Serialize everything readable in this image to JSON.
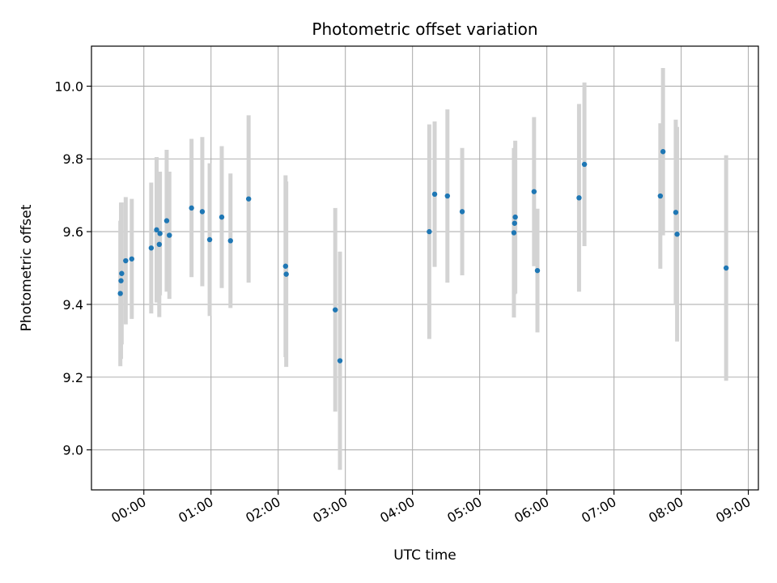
{
  "chart_data": {
    "type": "scatter",
    "title": "Photometric offset variation",
    "xlabel": "UTC time",
    "ylabel": "Photometric offset",
    "x_unit": "hours",
    "xlim": [
      -0.78,
      9.15
    ],
    "ylim": [
      8.89,
      10.11
    ],
    "x_ticks": [
      0,
      1,
      2,
      3,
      4,
      5,
      6,
      7,
      8,
      9
    ],
    "x_tick_labels": [
      "00:00",
      "01:00",
      "02:00",
      "03:00",
      "04:00",
      "05:00",
      "06:00",
      "07:00",
      "08:00",
      "09:00"
    ],
    "y_ticks": [
      9.0,
      9.2,
      9.4,
      9.6,
      9.8,
      10.0
    ],
    "y_tick_labels": [
      "9.0",
      "9.2",
      "9.4",
      "9.6",
      "9.8",
      "10.0"
    ],
    "grid": true,
    "colors": {
      "point": "#1f77b4",
      "errorbar": "#d3d3d3",
      "grid": "#b0b0b0"
    },
    "points": [
      {
        "x": -0.35,
        "y": 9.43,
        "err": 0.2
      },
      {
        "x": -0.34,
        "y": 9.465,
        "err": 0.215
      },
      {
        "x": -0.33,
        "y": 9.485,
        "err": 0.195
      },
      {
        "x": -0.27,
        "y": 9.52,
        "err": 0.175
      },
      {
        "x": -0.18,
        "y": 9.525,
        "err": 0.165
      },
      {
        "x": 0.11,
        "y": 9.555,
        "err": 0.18
      },
      {
        "x": 0.19,
        "y": 9.605,
        "err": 0.2
      },
      {
        "x": 0.23,
        "y": 9.565,
        "err": 0.2
      },
      {
        "x": 0.24,
        "y": 9.595,
        "err": 0.17
      },
      {
        "x": 0.34,
        "y": 9.63,
        "err": 0.195
      },
      {
        "x": 0.38,
        "y": 9.59,
        "err": 0.175
      },
      {
        "x": 0.71,
        "y": 9.665,
        "err": 0.19
      },
      {
        "x": 0.87,
        "y": 9.655,
        "err": 0.205
      },
      {
        "x": 0.98,
        "y": 9.578,
        "err": 0.21
      },
      {
        "x": 1.16,
        "y": 9.64,
        "err": 0.195
      },
      {
        "x": 1.29,
        "y": 9.575,
        "err": 0.185
      },
      {
        "x": 1.56,
        "y": 9.69,
        "err": 0.23
      },
      {
        "x": 2.11,
        "y": 9.505,
        "err": 0.25
      },
      {
        "x": 2.12,
        "y": 9.483,
        "err": 0.255
      },
      {
        "x": 2.85,
        "y": 9.385,
        "err": 0.28
      },
      {
        "x": 2.92,
        "y": 9.245,
        "err": 0.3
      },
      {
        "x": 4.25,
        "y": 9.6,
        "err": 0.295
      },
      {
        "x": 4.33,
        "y": 9.703,
        "err": 0.2
      },
      {
        "x": 4.52,
        "y": 9.698,
        "err": 0.238
      },
      {
        "x": 4.74,
        "y": 9.655,
        "err": 0.175
      },
      {
        "x": 5.51,
        "y": 9.597,
        "err": 0.233
      },
      {
        "x": 5.52,
        "y": 9.623,
        "err": 0.195
      },
      {
        "x": 5.53,
        "y": 9.64,
        "err": 0.21
      },
      {
        "x": 5.81,
        "y": 9.71,
        "err": 0.205
      },
      {
        "x": 5.86,
        "y": 9.493,
        "err": 0.17
      },
      {
        "x": 6.48,
        "y": 9.693,
        "err": 0.258
      },
      {
        "x": 6.56,
        "y": 9.785,
        "err": 0.225
      },
      {
        "x": 7.69,
        "y": 9.698,
        "err": 0.2
      },
      {
        "x": 7.73,
        "y": 9.82,
        "err": 0.23
      },
      {
        "x": 7.92,
        "y": 9.653,
        "err": 0.255
      },
      {
        "x": 7.94,
        "y": 9.593,
        "err": 0.295
      },
      {
        "x": 8.67,
        "y": 9.5,
        "err": 0.31
      }
    ]
  }
}
